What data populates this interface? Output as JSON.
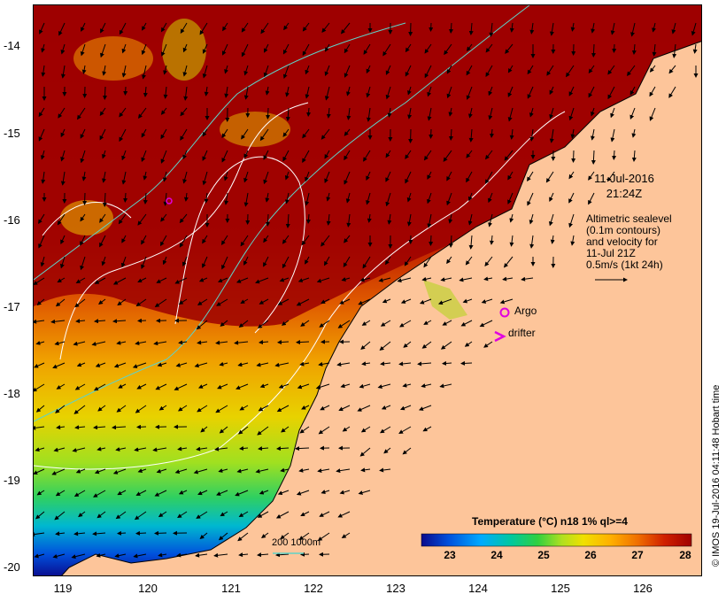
{
  "map": {
    "y_ticks": [
      "-14",
      "-15",
      "-16",
      "-17",
      "-18",
      "-19",
      "-20"
    ],
    "x_ticks": [
      "119",
      "120",
      "121",
      "122",
      "123",
      "124",
      "125",
      "126"
    ],
    "lon_range": [
      118.65,
      126.75
    ],
    "lat_range": [
      -13.55,
      -20.15
    ],
    "colors": {
      "land": "#fdc59a",
      "cloud": "#9c0000",
      "coast": "#000000",
      "contour": "#ffffff",
      "bathymetry": "#5fd3c8",
      "marker": "#e000e0"
    }
  },
  "annotations": {
    "valid_time": [
      "11-Jul-2016",
      "21:24Z"
    ],
    "legend_text": [
      "Altimetric sealevel",
      "(0.1m contours)",
      "and velocity for",
      "11-Jul 21Z",
      "0.5m/s (1kt 24h)"
    ],
    "argo_label": "Argo",
    "drifter_label": "drifter",
    "bathy_label": "200  1000m",
    "credit": "© IMOS 19-Jul-2016 04:11:48 Hobart time"
  },
  "colorbar": {
    "title": "Temperature (°C) n18 1% ql>=4",
    "ticks": [
      "23",
      "24",
      "25",
      "26",
      "27",
      "28"
    ],
    "range": [
      22.3,
      28.1
    ],
    "colors": [
      "#0a0a8c",
      "#0050dc",
      "#00aaff",
      "#00c8a0",
      "#30d040",
      "#b0e020",
      "#f0e000",
      "#ffb000",
      "#f07000",
      "#d02000",
      "#a00000"
    ]
  }
}
